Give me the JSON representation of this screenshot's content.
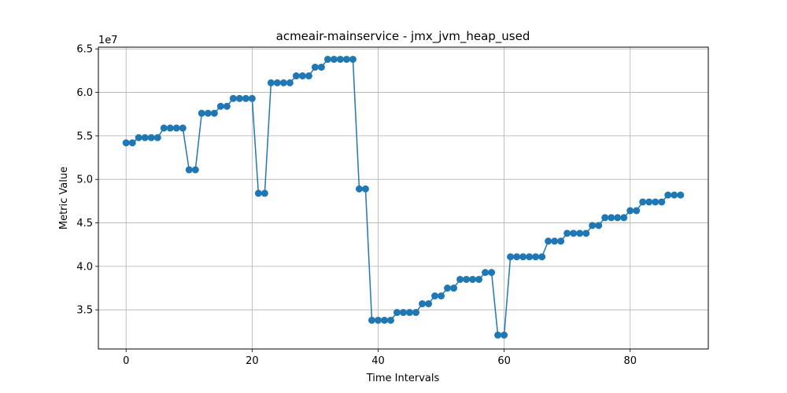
{
  "chart_data": {
    "type": "line",
    "title": "acmeair-mainservice - jmx_jvm_heap_used",
    "xlabel": "Time Intervals",
    "ylabel": "Metric Value",
    "offset_text": "1e7",
    "xlim": [
      -4.4,
      92.4
    ],
    "ylim": [
      3.05,
      6.52
    ],
    "x_ticks": [
      0,
      20,
      40,
      60,
      80
    ],
    "y_ticks": [
      3.5,
      4.0,
      4.5,
      5.0,
      5.5,
      6.0,
      6.5
    ],
    "x_tick_labels": [
      "0",
      "20",
      "40",
      "60",
      "80"
    ],
    "y_tick_labels": [
      "3.5",
      "4.0",
      "4.5",
      "5.0",
      "5.5",
      "6.0",
      "6.5"
    ],
    "grid": true,
    "series": [
      {
        "color": "#1f77b4",
        "marker": "circle",
        "x": [
          0,
          1,
          2,
          3,
          4,
          5,
          6,
          7,
          8,
          9,
          10,
          11,
          12,
          13,
          14,
          15,
          16,
          17,
          18,
          19,
          20,
          21,
          22,
          23,
          24,
          25,
          26,
          27,
          28,
          29,
          30,
          31,
          32,
          33,
          34,
          35,
          36,
          37,
          38,
          39,
          40,
          41,
          42,
          43,
          44,
          45,
          46,
          47,
          48,
          49,
          50,
          51,
          52,
          53,
          54,
          55,
          56,
          57,
          58,
          59,
          60,
          61,
          62,
          63,
          64,
          65,
          66,
          67,
          68,
          69,
          70,
          71,
          72,
          73,
          74,
          75,
          76,
          77,
          78,
          79,
          80,
          81,
          82,
          83,
          84,
          85,
          86,
          87,
          88
        ],
        "values": [
          5.42,
          5.42,
          5.48,
          5.48,
          5.48,
          5.48,
          5.59,
          5.59,
          5.59,
          5.59,
          5.11,
          5.11,
          5.76,
          5.76,
          5.76,
          5.84,
          5.84,
          5.93,
          5.93,
          5.93,
          5.93,
          4.84,
          4.84,
          6.11,
          6.11,
          6.11,
          6.11,
          6.19,
          6.19,
          6.19,
          6.29,
          6.29,
          6.38,
          6.38,
          6.38,
          6.38,
          6.38,
          4.89,
          4.89,
          3.38,
          3.38,
          3.38,
          3.38,
          3.47,
          3.47,
          3.47,
          3.47,
          3.57,
          3.57,
          3.66,
          3.66,
          3.75,
          3.75,
          3.85,
          3.85,
          3.85,
          3.85,
          3.93,
          3.93,
          3.21,
          3.21,
          4.11,
          4.11,
          4.11,
          4.11,
          4.11,
          4.11,
          4.29,
          4.29,
          4.29,
          4.38,
          4.38,
          4.38,
          4.38,
          4.47,
          4.47,
          4.56,
          4.56,
          4.56,
          4.56,
          4.64,
          4.64,
          4.74,
          4.74,
          4.74,
          4.74,
          4.82,
          4.82,
          4.82
        ]
      }
    ]
  }
}
